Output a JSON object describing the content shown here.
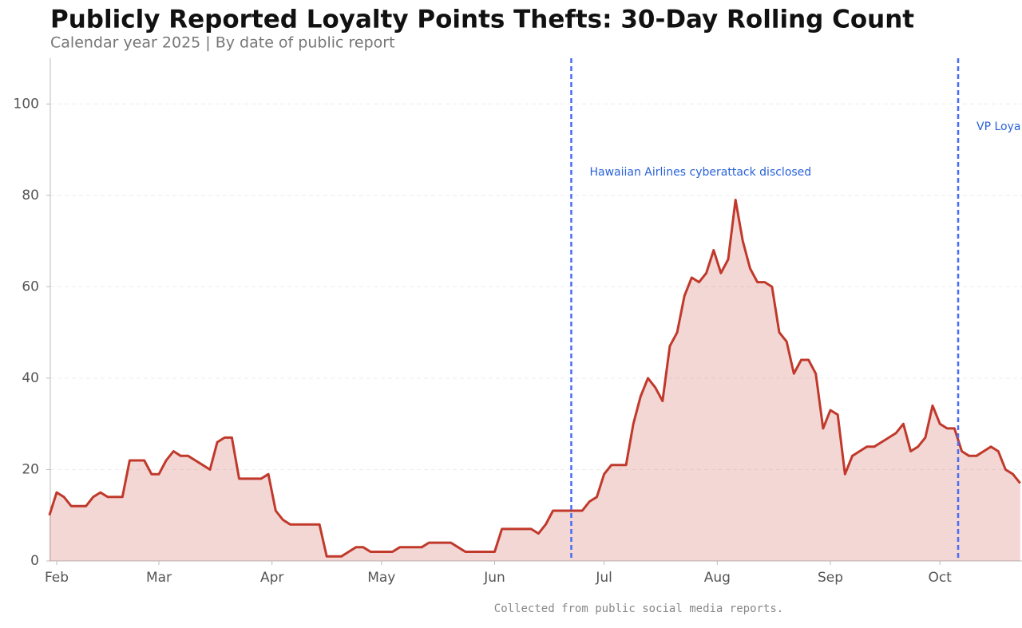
{
  "chart_data": {
    "type": "area",
    "title": "Publicly Reported Loyalty Points Thefts: 30-Day Rolling Count",
    "subtitle": "Calendar year 2025 | By date of public report",
    "footnote": "Collected from public social media reports.",
    "x": [
      30,
      32,
      34,
      36,
      38,
      40,
      42,
      44,
      46,
      48,
      50,
      52,
      54,
      56,
      58,
      60,
      62,
      64,
      66,
      68,
      70,
      72,
      74,
      76,
      78,
      80,
      82,
      84,
      86,
      88,
      90,
      92,
      94,
      96,
      98,
      100,
      102,
      104,
      106,
      108,
      110,
      112,
      114,
      116,
      118,
      120,
      122,
      124,
      126,
      128,
      130,
      132,
      134,
      136,
      138,
      140,
      142,
      144,
      146,
      148,
      150,
      152,
      154,
      156,
      158,
      160,
      162,
      164,
      166,
      168,
      170,
      172,
      174,
      176,
      178,
      180,
      182,
      184,
      186,
      188,
      190,
      192,
      194,
      196,
      198,
      200,
      202,
      204,
      206,
      208,
      210,
      212,
      214,
      216,
      218,
      220,
      222,
      224,
      226,
      228,
      230,
      232,
      234,
      236,
      238,
      240,
      242,
      244,
      246,
      248,
      250,
      252,
      254,
      256,
      258,
      260,
      262,
      264,
      266,
      268,
      270,
      272,
      274,
      276,
      278,
      280,
      282,
      284,
      286,
      288,
      290,
      292,
      294,
      296
    ],
    "values": [
      10,
      15,
      14,
      12,
      12,
      12,
      14,
      15,
      14,
      14,
      14,
      22,
      22,
      22,
      19,
      19,
      22,
      24,
      23,
      23,
      22,
      21,
      20,
      26,
      27,
      27,
      18,
      18,
      18,
      18,
      19,
      11,
      9,
      8,
      8,
      8,
      8,
      8,
      1,
      1,
      1,
      2,
      3,
      3,
      2,
      2,
      2,
      2,
      3,
      3,
      3,
      3,
      4,
      4,
      4,
      4,
      3,
      2,
      2,
      2,
      2,
      2,
      7,
      7,
      7,
      7,
      7,
      6,
      8,
      11,
      11,
      11,
      11,
      11,
      13,
      14,
      19,
      21,
      21,
      21,
      30,
      36,
      40,
      38,
      35,
      47,
      50,
      58,
      62,
      61,
      63,
      68,
      63,
      66,
      79,
      70,
      64,
      61,
      61,
      60,
      50,
      48,
      41,
      44,
      44,
      41,
      29,
      33,
      32,
      19,
      23,
      24,
      25,
      25,
      26,
      27,
      28,
      30,
      24,
      25,
      27,
      34,
      30,
      29,
      29,
      24,
      23,
      23,
      24,
      25,
      24,
      20,
      19,
      17
    ],
    "color": "#c0392b",
    "xlim": [
      30.25,
      296.5
    ],
    "ylim": [
      0,
      110
    ],
    "yticks": [
      0,
      20,
      40,
      60,
      80,
      100
    ],
    "xticks": [
      {
        "value": 32,
        "label": "Feb"
      },
      {
        "value": 60,
        "label": "Mar"
      },
      {
        "value": 91,
        "label": "Apr"
      },
      {
        "value": 121,
        "label": "May"
      },
      {
        "value": 152,
        "label": "Jun"
      },
      {
        "value": 182,
        "label": "Jul"
      },
      {
        "value": 213,
        "label": "Aug"
      },
      {
        "value": 244,
        "label": "Sep"
      },
      {
        "value": 274,
        "label": "Oct"
      }
    ],
    "grid": true,
    "annotations": [
      {
        "x": 173,
        "y": 85,
        "label": "Hawaiian Airlines cyberattack disclosed",
        "color": "#4a6cf7"
      },
      {
        "x": 279,
        "y": 95,
        "label": "VP Loya",
        "color": "#4a6cf7"
      }
    ]
  }
}
